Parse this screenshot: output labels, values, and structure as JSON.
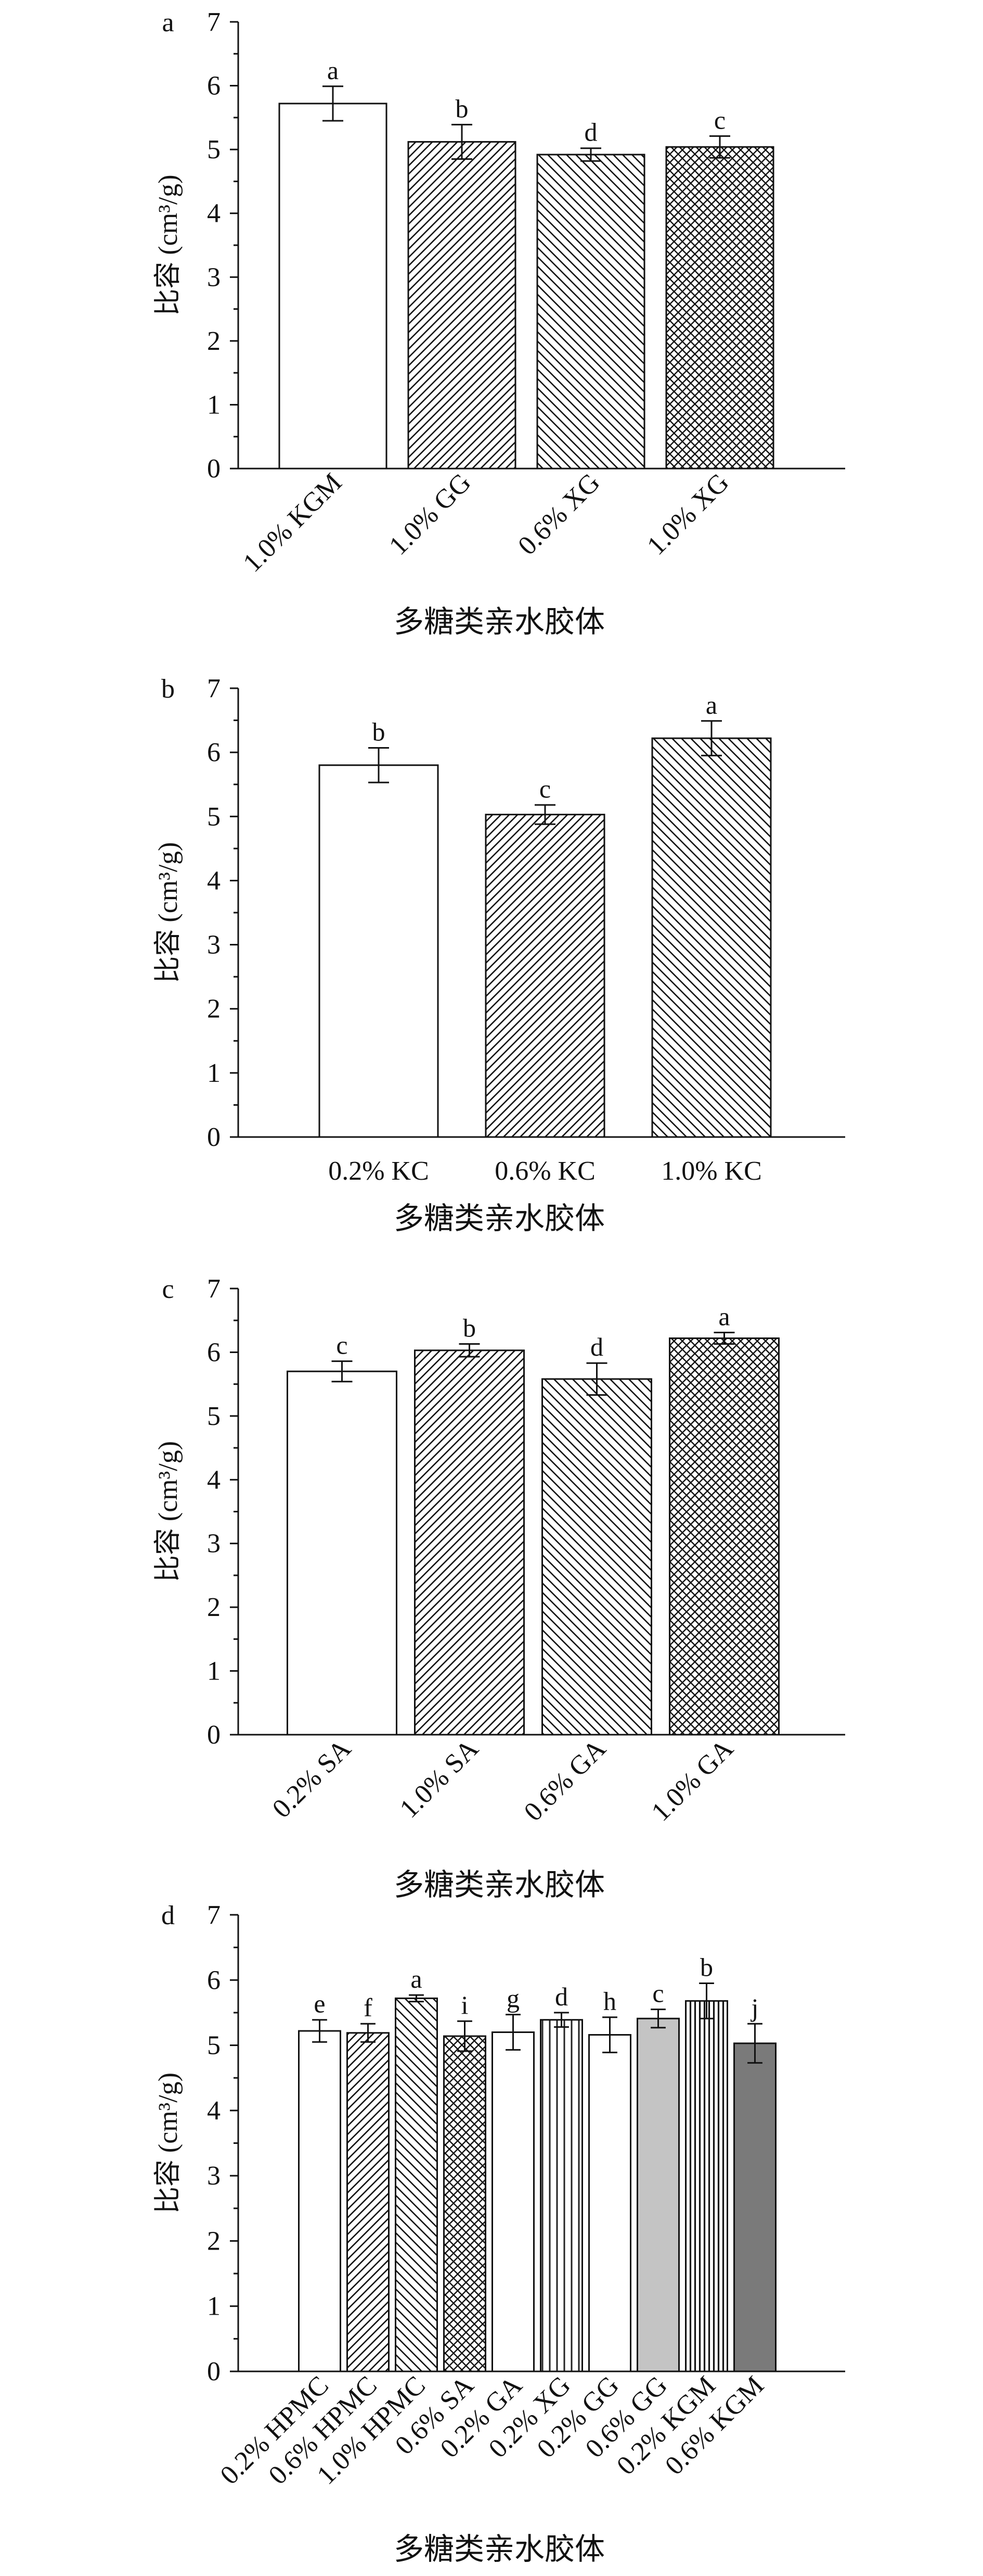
{
  "chart_data": [
    {
      "type": "bar",
      "panel_label": "a",
      "categories": [
        "1.0% KGM",
        "1.0% GG",
        "0.6% XG",
        "1.0% XG"
      ],
      "values": [
        5.72,
        5.12,
        4.92,
        5.04
      ],
      "errors": [
        0.27,
        0.27,
        0.1,
        0.17
      ],
      "significance_letters": [
        "a",
        "b",
        "d",
        "c"
      ],
      "patterns": [
        "none",
        "diag-fine",
        "diag-back",
        "cross"
      ],
      "xlabel": "多糖类亲水胶体",
      "ylabel": "比容 (cm³/g)",
      "ylim": [
        0,
        7
      ],
      "yticks": [
        0,
        1,
        2,
        3,
        4,
        5,
        6,
        7
      ],
      "xtick_rotation": "45deg",
      "grid": false
    },
    {
      "type": "bar",
      "panel_label": "b",
      "categories": [
        "0.2% KC",
        "0.6% KC",
        "1.0% KC"
      ],
      "values": [
        5.8,
        5.03,
        6.22
      ],
      "errors": [
        0.27,
        0.15,
        0.27
      ],
      "significance_letters": [
        "b",
        "c",
        "a"
      ],
      "patterns": [
        "none",
        "diag-fine",
        "diag-back"
      ],
      "xlabel": "多糖类亲水胶体",
      "ylabel": "比容 (cm³/g)",
      "ylim": [
        0,
        7
      ],
      "yticks": [
        0,
        1,
        2,
        3,
        4,
        5,
        6,
        7
      ],
      "xtick_rotation": "none",
      "grid": false
    },
    {
      "type": "bar",
      "panel_label": "c",
      "categories": [
        "0.2% SA",
        "1.0% SA",
        "0.6% GA",
        "1.0% GA"
      ],
      "values": [
        5.7,
        6.03,
        5.58,
        6.22
      ],
      "errors": [
        0.16,
        0.1,
        0.25,
        0.09
      ],
      "significance_letters": [
        "c",
        "b",
        "d",
        "a"
      ],
      "patterns": [
        "none",
        "diag-fine",
        "diag-back",
        "cross"
      ],
      "xlabel": "多糖类亲水胶体",
      "ylabel": "比容 (cm³/g)",
      "ylim": [
        0,
        7
      ],
      "yticks": [
        0,
        1,
        2,
        3,
        4,
        5,
        6,
        7
      ],
      "xtick_rotation": "45deg",
      "grid": false
    },
    {
      "type": "bar",
      "panel_label": "d",
      "categories": [
        "0.2% HPMC",
        "0.6% HPMC",
        "1.0% HPMC",
        "0.6% SA",
        "0.2% GA",
        "0.2% XG",
        "0.2% GG",
        "0.6% GG",
        "0.2% KGM",
        "0.6% KGM"
      ],
      "values": [
        5.22,
        5.19,
        5.72,
        5.14,
        5.2,
        5.39,
        5.16,
        5.41,
        5.68,
        5.03
      ],
      "errors": [
        0.17,
        0.14,
        0.05,
        0.23,
        0.27,
        0.11,
        0.27,
        0.14,
        0.27,
        0.3
      ],
      "significance_letters": [
        "e",
        "f",
        "a",
        "i",
        "g",
        "d",
        "h",
        "c",
        "b",
        "j"
      ],
      "patterns": [
        "none",
        "diag-fine",
        "diag-back",
        "cross",
        "none",
        "vlines",
        "none",
        "gray-light",
        "vlines-dense",
        "gray-dark"
      ],
      "xlabel": "多糖类亲水胶体",
      "ylabel": "比容 (cm³/g)",
      "ylim": [
        0,
        7
      ],
      "yticks": [
        0,
        1,
        2,
        3,
        4,
        5,
        6,
        7
      ],
      "xtick_rotation": "45deg",
      "grid": false
    }
  ]
}
